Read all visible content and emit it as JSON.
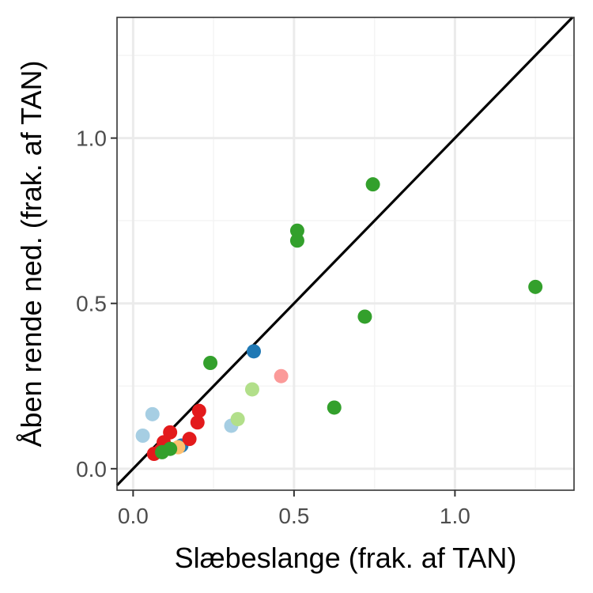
{
  "chart_data": {
    "type": "scatter",
    "title": "",
    "xlabel": "Slæbeslange (frak. af TAN)",
    "ylabel": "Åben rende ned. (frak. af TAN)",
    "xlim": [
      -0.05,
      1.37
    ],
    "ylim": [
      -0.065,
      1.365
    ],
    "x_ticks": [
      0.0,
      0.5,
      1.0
    ],
    "y_ticks": [
      0.0,
      0.5,
      1.0
    ],
    "x_tick_labels": [
      "0.0",
      "0.5",
      "1.0"
    ],
    "y_tick_labels": [
      "0.0",
      "0.5",
      "1.0"
    ],
    "grid": true,
    "reference_line": {
      "slope": 1,
      "intercept": 0,
      "color": "#000000"
    },
    "points": [
      {
        "x": 0.03,
        "y": 0.1,
        "color": "#a6cee3"
      },
      {
        "x": 0.06,
        "y": 0.165,
        "color": "#a6cee3"
      },
      {
        "x": 0.305,
        "y": 0.13,
        "color": "#a6cee3"
      },
      {
        "x": 0.375,
        "y": 0.355,
        "color": "#1f78b4"
      },
      {
        "x": 0.15,
        "y": 0.07,
        "color": "#1f78b4"
      },
      {
        "x": 0.325,
        "y": 0.15,
        "color": "#b2df8a"
      },
      {
        "x": 0.37,
        "y": 0.24,
        "color": "#b2df8a"
      },
      {
        "x": 0.46,
        "y": 0.28,
        "color": "#fb9a99"
      },
      {
        "x": 0.065,
        "y": 0.045,
        "color": "#e31a1c"
      },
      {
        "x": 0.085,
        "y": 0.055,
        "color": "#e31a1c"
      },
      {
        "x": 0.095,
        "y": 0.08,
        "color": "#e31a1c"
      },
      {
        "x": 0.115,
        "y": 0.11,
        "color": "#e31a1c"
      },
      {
        "x": 0.175,
        "y": 0.09,
        "color": "#e31a1c"
      },
      {
        "x": 0.2,
        "y": 0.14,
        "color": "#e31a1c"
      },
      {
        "x": 0.205,
        "y": 0.175,
        "color": "#e31a1c"
      },
      {
        "x": 0.14,
        "y": 0.065,
        "color": "#fdbf6f"
      },
      {
        "x": 0.09,
        "y": 0.05,
        "color": "#33a02c"
      },
      {
        "x": 0.115,
        "y": 0.06,
        "color": "#33a02c"
      },
      {
        "x": 0.24,
        "y": 0.32,
        "color": "#33a02c"
      },
      {
        "x": 0.51,
        "y": 0.72,
        "color": "#33a02c"
      },
      {
        "x": 0.51,
        "y": 0.69,
        "color": "#33a02c"
      },
      {
        "x": 0.745,
        "y": 0.86,
        "color": "#33a02c"
      },
      {
        "x": 0.72,
        "y": 0.46,
        "color": "#33a02c"
      },
      {
        "x": 0.625,
        "y": 0.185,
        "color": "#33a02c"
      },
      {
        "x": 1.25,
        "y": 0.55,
        "color": "#33a02c"
      }
    ]
  }
}
